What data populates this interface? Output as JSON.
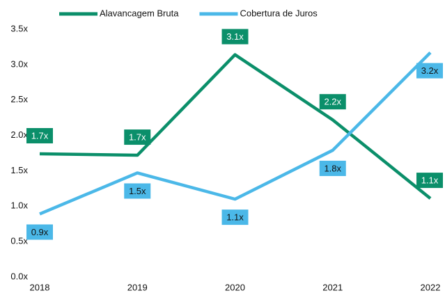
{
  "chart_data": {
    "type": "line",
    "categories": [
      "2018",
      "2019",
      "2020",
      "2021",
      "2022"
    ],
    "series": [
      {
        "name": "Alavancagem Bruta",
        "color": "#0b8f6a",
        "label_color": "#ffffff",
        "label_position": "above",
        "values": [
          1.74,
          1.72,
          3.14,
          2.22,
          1.11
        ],
        "value_labels": [
          "1.7x",
          "1.7x",
          "3.1x",
          "2.2x",
          "1.1x"
        ]
      },
      {
        "name": "Cobertura de Juros",
        "color": "#4bb8e8",
        "label_color": "#111111",
        "label_position": "below",
        "values": [
          0.89,
          1.47,
          1.1,
          1.79,
          3.17
        ],
        "value_labels": [
          "0.9x",
          "1.5x",
          "1.1x",
          "1.8x",
          "3.2x"
        ]
      }
    ],
    "ylim": [
      0,
      3.5
    ],
    "yticks": [
      {
        "value": 0,
        "label": "0.0x"
      },
      {
        "value": 0.5,
        "label": "0.5x"
      },
      {
        "value": 1,
        "label": "1.0x"
      },
      {
        "value": 1.5,
        "label": "1.5x"
      },
      {
        "value": 2,
        "label": "2.0x"
      },
      {
        "value": 2.5,
        "label": "2.5x"
      },
      {
        "value": 3,
        "label": "3.0x"
      },
      {
        "value": 3.5,
        "label": "3.5x"
      }
    ],
    "grid": false,
    "legend": "top"
  }
}
